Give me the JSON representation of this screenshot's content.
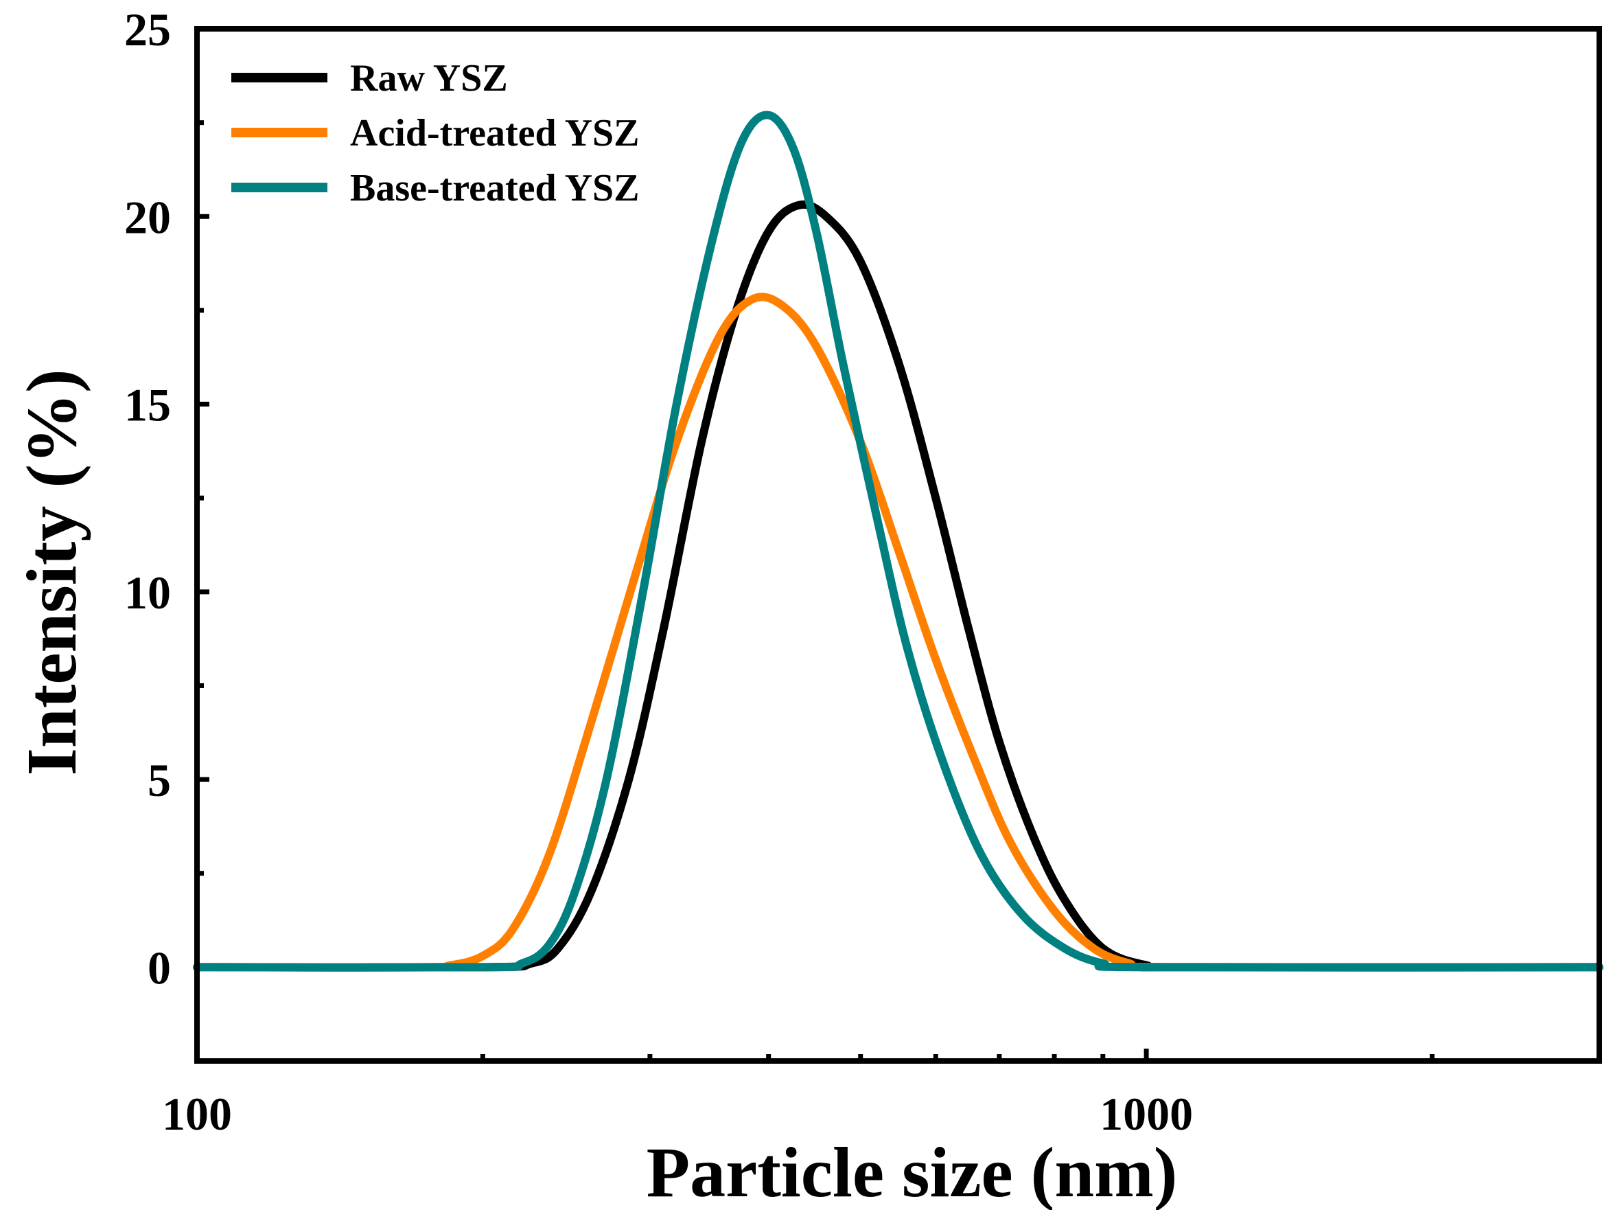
{
  "chart_data": {
    "type": "line",
    "xscale": "log",
    "xlabel": "Particle size (nm)",
    "ylabel": "Intensity (%)",
    "xlim": [
      100,
      3000
    ],
    "ylim": [
      -2.5,
      25
    ],
    "xticks": [
      {
        "value": 100,
        "label": "100"
      },
      {
        "value": 1000,
        "label": "1000"
      }
    ],
    "yticks": [
      {
        "value": 0,
        "label": "0"
      },
      {
        "value": 5,
        "label": "5"
      },
      {
        "value": 10,
        "label": "10"
      },
      {
        "value": 15,
        "label": "15"
      },
      {
        "value": 20,
        "label": "20"
      },
      {
        "value": 25,
        "label": "25"
      }
    ],
    "legend_position": "top-left",
    "series": [
      {
        "name": "Raw YSZ",
        "color": "#000000",
        "points": [
          [
            100,
            0
          ],
          [
            200,
            0
          ],
          [
            225,
            0.1
          ],
          [
            240,
            0.5
          ],
          [
            260,
            2
          ],
          [
            285,
            5
          ],
          [
            310,
            9
          ],
          [
            340,
            14
          ],
          [
            370,
            17.5
          ],
          [
            400,
            19.6
          ],
          [
            430,
            20.3
          ],
          [
            460,
            20
          ],
          [
            500,
            18.8
          ],
          [
            550,
            16
          ],
          [
            600,
            12.5
          ],
          [
            650,
            9
          ],
          [
            700,
            6
          ],
          [
            760,
            3.5
          ],
          [
            820,
            1.8
          ],
          [
            900,
            0.5
          ],
          [
            1000,
            0.05
          ],
          [
            1100,
            0
          ],
          [
            3000,
            0
          ]
        ]
      },
      {
        "name": "Acid-treated YSZ",
        "color": "#ff8000",
        "points": [
          [
            100,
            0
          ],
          [
            170,
            0
          ],
          [
            185,
            0.05
          ],
          [
            200,
            0.3
          ],
          [
            215,
            1
          ],
          [
            235,
            3
          ],
          [
            260,
            6.5
          ],
          [
            290,
            10.5
          ],
          [
            320,
            14
          ],
          [
            355,
            16.8
          ],
          [
            385,
            17.8
          ],
          [
            415,
            17.6
          ],
          [
            450,
            16.5
          ],
          [
            500,
            14
          ],
          [
            550,
            11
          ],
          [
            600,
            8.2
          ],
          [
            660,
            5.5
          ],
          [
            720,
            3.3
          ],
          [
            800,
            1.5
          ],
          [
            880,
            0.5
          ],
          [
            960,
            0.1
          ],
          [
            1050,
            0
          ],
          [
            3000,
            0
          ]
        ]
      },
      {
        "name": "Base-treated YSZ",
        "color": "#008080",
        "points": [
          [
            100,
            0
          ],
          [
            200,
            0
          ],
          [
            220,
            0.1
          ],
          [
            235,
            0.6
          ],
          [
            250,
            2
          ],
          [
            270,
            5
          ],
          [
            295,
            10
          ],
          [
            320,
            15
          ],
          [
            350,
            19.5
          ],
          [
            375,
            22
          ],
          [
            400,
            22.7
          ],
          [
            425,
            21.8
          ],
          [
            450,
            19.5
          ],
          [
            480,
            16
          ],
          [
            520,
            12
          ],
          [
            560,
            8.5
          ],
          [
            610,
            5.5
          ],
          [
            670,
            3
          ],
          [
            740,
            1.4
          ],
          [
            820,
            0.5
          ],
          [
            900,
            0.1
          ],
          [
            1000,
            0
          ],
          [
            3000,
            0
          ]
        ]
      }
    ]
  }
}
